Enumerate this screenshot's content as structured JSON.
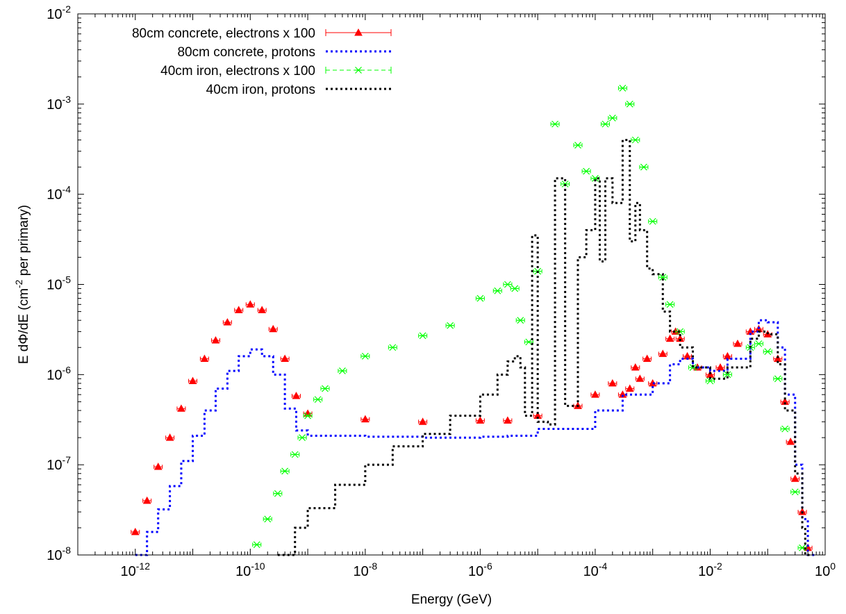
{
  "chart_data": {
    "type": "line",
    "title": "",
    "xlabel": "Energy (GeV)",
    "ylabel_parts": [
      "E d",
      "Φ",
      "/dE (cm",
      "-2",
      " per primary)"
    ],
    "xscale": "log",
    "yscale": "log",
    "xlim": [
      1e-13,
      1
    ],
    "ylim": [
      1e-08,
      0.01
    ],
    "grid": false,
    "legend_position": "top-left",
    "x_ticks": [
      {
        "base": "10",
        "exp": "-12",
        "value": 1e-12
      },
      {
        "base": "10",
        "exp": "-10",
        "value": 1e-10
      },
      {
        "base": "10",
        "exp": "-8",
        "value": 1e-08
      },
      {
        "base": "10",
        "exp": "-6",
        "value": 1e-06
      },
      {
        "base": "10",
        "exp": "-4",
        "value": 0.0001
      },
      {
        "base": "10",
        "exp": "-2",
        "value": 0.01
      },
      {
        "base": "10",
        "exp": "0",
        "value": 1
      }
    ],
    "y_ticks": [
      {
        "base": "10",
        "exp": "-8",
        "value": 1e-08
      },
      {
        "base": "10",
        "exp": "-7",
        "value": 1e-07
      },
      {
        "base": "10",
        "exp": "-6",
        "value": 1e-06
      },
      {
        "base": "10",
        "exp": "-5",
        "value": 1e-05
      },
      {
        "base": "10",
        "exp": "-4",
        "value": 0.0001
      },
      {
        "base": "10",
        "exp": "-3",
        "value": 0.001
      },
      {
        "base": "10",
        "exp": "-2",
        "value": 0.01
      }
    ],
    "series": [
      {
        "name": "80cm concrete, electrons x 100",
        "style": "points-errorbars",
        "marker": "triangle",
        "color": "#ff0000",
        "x": [
          1e-12,
          1.6e-12,
          2.5e-12,
          4e-12,
          6.3e-12,
          1e-11,
          1.6e-11,
          2.5e-11,
          4e-11,
          6.3e-11,
          1e-10,
          1.6e-10,
          2.5e-10,
          4e-10,
          6.3e-10,
          1e-09,
          1e-08,
          1e-07,
          1e-06,
          3e-06,
          1e-05,
          5e-05,
          0.0001,
          0.0002,
          0.0003,
          0.0004,
          0.0005,
          0.0006,
          0.0008,
          0.001,
          0.0015,
          0.002,
          0.0025,
          0.003,
          0.004,
          0.006,
          0.01,
          0.015,
          0.02,
          0.03,
          0.05,
          0.07,
          0.1,
          0.15,
          0.2,
          0.25,
          0.3,
          0.4,
          0.5
        ],
        "y": [
          1.8e-08,
          4e-08,
          9.5e-08,
          2e-07,
          4.2e-07,
          8.5e-07,
          1.5e-06,
          2.4e-06,
          3.8e-06,
          5.2e-06,
          6e-06,
          5.2e-06,
          3.2e-06,
          1.5e-06,
          5.8e-07,
          3.7e-07,
          3.2e-07,
          3e-07,
          3.1e-07,
          3.1e-07,
          3.5e-07,
          4.5e-07,
          6e-07,
          8e-07,
          6e-07,
          7e-07,
          1.2e-06,
          9e-07,
          1.5e-06,
          8e-07,
          1.7e-06,
          2.5e-06,
          3e-06,
          2.5e-06,
          1.6e-06,
          1.2e-06,
          1e-06,
          1.2e-06,
          1.6e-06,
          2.2e-06,
          3e-06,
          3.2e-06,
          2.8e-06,
          1.5e-06,
          5e-07,
          1.8e-07,
          7e-08,
          3e-08,
          1.2e-08
        ]
      },
      {
        "name": "80cm concrete, protons",
        "style": "steps-dotted",
        "color": "#0000ff",
        "x": [
          1e-12,
          1.6e-12,
          2.5e-12,
          4e-12,
          6.3e-12,
          1e-11,
          1.6e-11,
          2.5e-11,
          4e-11,
          6.3e-11,
          1e-10,
          1.6e-10,
          2.5e-10,
          4e-10,
          6.3e-10,
          1e-09,
          1e-08,
          1e-07,
          1e-06,
          3e-06,
          1e-05,
          0.0001,
          0.0003,
          0.001,
          0.002,
          0.003,
          0.005,
          0.01,
          0.02,
          0.05,
          0.07,
          0.1,
          0.15,
          0.2,
          0.3,
          0.4,
          0.5
        ],
        "y": [
          1e-08,
          1.8e-08,
          3.2e-08,
          5.8e-08,
          1.1e-07,
          2.1e-07,
          4e-07,
          7e-07,
          1.1e-06,
          1.6e-06,
          1.9e-06,
          1.6e-06,
          1e-06,
          4.2e-07,
          2.4e-07,
          2.1e-07,
          2.05e-07,
          2e-07,
          2.05e-07,
          2.1e-07,
          2.5e-07,
          4e-07,
          6e-07,
          8e-07,
          1.3e-06,
          1.5e-06,
          1.2e-06,
          1.1e-06,
          1.5e-06,
          3e-06,
          4e-06,
          3.8e-06,
          2e-06,
          6e-07,
          1e-07,
          2.5e-08,
          1e-08
        ]
      },
      {
        "name": "40cm iron, electrons x 100",
        "style": "points-errorbars",
        "marker": "star",
        "color": "#00ff00",
        "x": [
          1.3e-10,
          2e-10,
          3e-10,
          4e-10,
          6e-10,
          8e-10,
          1e-09,
          1.5e-09,
          2e-09,
          4e-09,
          1e-08,
          3e-08,
          1e-07,
          3e-07,
          1e-06,
          2e-06,
          3e-06,
          4e-06,
          5e-06,
          7e-06,
          1e-05,
          2e-05,
          3e-05,
          5e-05,
          7e-05,
          0.0001,
          0.00015,
          0.0002,
          0.0003,
          0.0004,
          0.0005,
          0.0007,
          0.001,
          0.0015,
          0.002,
          0.003,
          0.005,
          0.01,
          0.02,
          0.05,
          0.07,
          0.1,
          0.15,
          0.2,
          0.3,
          0.4
        ],
        "y": [
          1.3e-08,
          2.5e-08,
          4.8e-08,
          8.5e-08,
          1.3e-07,
          2e-07,
          3.5e-07,
          5.3e-07,
          7e-07,
          1.1e-06,
          1.6e-06,
          2e-06,
          2.7e-06,
          3.5e-06,
          7e-06,
          8.5e-06,
          1e-05,
          9e-06,
          4e-06,
          2.3e-06,
          1.4e-05,
          0.0006,
          0.00013,
          0.00035,
          0.00018,
          0.00015,
          0.0006,
          0.0007,
          0.0015,
          0.001,
          0.0004,
          0.0002,
          5e-05,
          1.2e-05,
          6e-06,
          3e-06,
          1.2e-06,
          8.5e-07,
          1e-06,
          2e-06,
          2.2e-06,
          1.8e-06,
          9e-07,
          2.5e-07,
          5e-08,
          1.2e-08
        ]
      },
      {
        "name": "40cm iron, protons",
        "style": "steps-dotted",
        "color": "#000000",
        "x": [
          3e-10,
          6e-10,
          1e-09,
          3e-09,
          1e-08,
          3e-08,
          1e-07,
          3e-07,
          1e-06,
          2e-06,
          3e-06,
          4e-06,
          5e-06,
          6e-06,
          8e-06,
          1e-05,
          1.5e-05,
          2e-05,
          3e-05,
          5e-05,
          7e-05,
          0.0001,
          0.00012,
          0.00015,
          0.0002,
          0.0003,
          0.0004,
          0.0005,
          0.0006,
          0.0008,
          0.001,
          0.0015,
          0.002,
          0.003,
          0.005,
          0.01,
          0.02,
          0.05,
          0.07,
          0.1,
          0.15,
          0.2,
          0.3,
          0.4,
          0.45
        ],
        "y": [
          1e-08,
          2e-08,
          3.3e-08,
          6e-08,
          1e-07,
          1.6e-07,
          2.2e-07,
          3.5e-07,
          6e-07,
          1e-06,
          1.4e-06,
          1.6e-06,
          1.2e-06,
          3.5e-07,
          3.5e-05,
          3e-07,
          2.8e-07,
          0.00015,
          4.5e-07,
          2e-05,
          4e-05,
          0.00015,
          1.8e-05,
          0.00015,
          8e-05,
          0.0004,
          3e-05,
          8e-05,
          4e-05,
          1.5e-05,
          1.3e-05,
          5e-06,
          3e-06,
          2e-06,
          1.2e-06,
          9e-07,
          1.2e-06,
          2.5e-06,
          3e-06,
          2.8e-06,
          1.3e-06,
          4e-07,
          8e-08,
          2e-08,
          1e-08
        ]
      }
    ]
  }
}
